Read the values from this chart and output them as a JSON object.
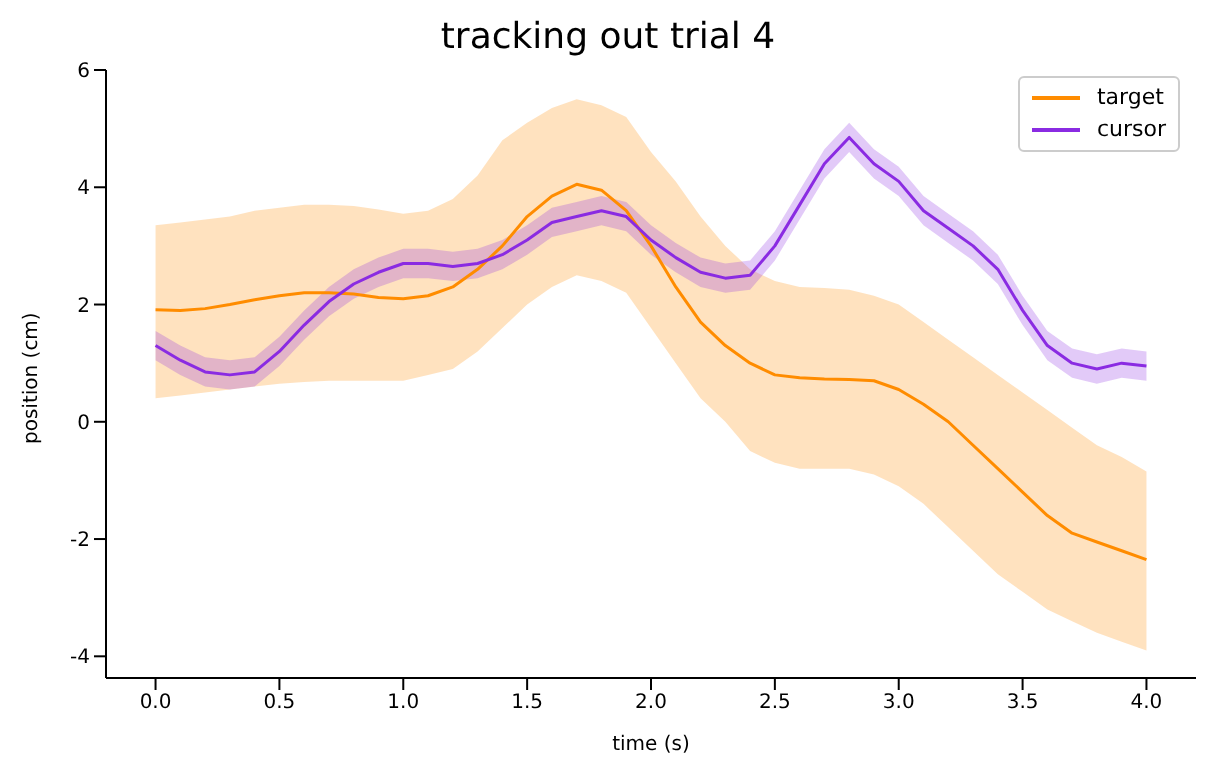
{
  "chart_data": {
    "type": "line",
    "title": "tracking out trial 4",
    "xlabel": "time (s)",
    "ylabel": "position (cm)",
    "x": [
      0,
      0.1,
      0.2,
      0.3,
      0.4,
      0.5,
      0.6,
      0.7,
      0.8,
      0.9,
      1.0,
      1.1,
      1.2,
      1.3,
      1.4,
      1.5,
      1.6,
      1.7,
      1.8,
      1.9,
      2.0,
      2.1,
      2.2,
      2.3,
      2.4,
      2.5,
      2.6,
      2.7,
      2.8,
      2.9,
      3.0,
      3.1,
      3.2,
      3.3,
      3.4,
      3.5,
      3.6,
      3.7,
      3.8,
      3.9,
      4.0
    ],
    "series": [
      {
        "name": "target",
        "color": "#ff8c00",
        "values": [
          1.91,
          1.9,
          1.93,
          2.0,
          2.08,
          2.15,
          2.2,
          2.2,
          2.18,
          2.12,
          2.1,
          2.15,
          2.3,
          2.6,
          3.0,
          3.5,
          3.85,
          4.05,
          3.95,
          3.6,
          3.0,
          2.3,
          1.7,
          1.3,
          1.0,
          0.8,
          0.75,
          0.73,
          0.72,
          0.7,
          0.55,
          0.3,
          0.0,
          -0.4,
          -0.8,
          -1.2,
          -1.6,
          -1.9,
          -2.05,
          -2.2,
          -2.35
        ],
        "lower": [
          0.4,
          0.45,
          0.5,
          0.55,
          0.6,
          0.65,
          0.68,
          0.7,
          0.7,
          0.7,
          0.7,
          0.8,
          0.9,
          1.2,
          1.6,
          2.0,
          2.3,
          2.5,
          2.4,
          2.2,
          1.6,
          1.0,
          0.4,
          0.0,
          -0.5,
          -0.7,
          -0.8,
          -0.8,
          -0.8,
          -0.9,
          -1.1,
          -1.4,
          -1.8,
          -2.2,
          -2.6,
          -2.9,
          -3.2,
          -3.4,
          -3.6,
          -3.75,
          -3.9
        ],
        "upper": [
          3.35,
          3.4,
          3.45,
          3.5,
          3.6,
          3.65,
          3.7,
          3.7,
          3.68,
          3.62,
          3.55,
          3.6,
          3.8,
          4.2,
          4.8,
          5.1,
          5.35,
          5.5,
          5.4,
          5.2,
          4.6,
          4.1,
          3.5,
          3.0,
          2.6,
          2.4,
          2.3,
          2.28,
          2.25,
          2.15,
          2.0,
          1.7,
          1.4,
          1.1,
          0.8,
          0.5,
          0.2,
          -0.1,
          -0.4,
          -0.6,
          -0.85
        ]
      },
      {
        "name": "cursor",
        "color": "#8a2be2",
        "values": [
          1.3,
          1.05,
          0.85,
          0.8,
          0.85,
          1.2,
          1.65,
          2.05,
          2.35,
          2.55,
          2.7,
          2.7,
          2.65,
          2.7,
          2.85,
          3.1,
          3.4,
          3.5,
          3.6,
          3.5,
          3.1,
          2.8,
          2.55,
          2.45,
          2.5,
          3.0,
          3.7,
          4.4,
          4.85,
          4.4,
          4.1,
          3.6,
          3.3,
          3.0,
          2.6,
          1.9,
          1.3,
          1.0,
          0.9,
          1.0,
          0.95
        ],
        "lower": [
          1.05,
          0.8,
          0.6,
          0.55,
          0.6,
          0.95,
          1.4,
          1.8,
          2.1,
          2.3,
          2.45,
          2.45,
          2.4,
          2.45,
          2.6,
          2.85,
          3.15,
          3.25,
          3.35,
          3.25,
          2.85,
          2.55,
          2.3,
          2.2,
          2.25,
          2.75,
          3.45,
          4.15,
          4.6,
          4.15,
          3.85,
          3.35,
          3.05,
          2.75,
          2.35,
          1.65,
          1.05,
          0.75,
          0.65,
          0.75,
          0.7
        ],
        "upper": [
          1.55,
          1.3,
          1.1,
          1.05,
          1.1,
          1.45,
          1.9,
          2.3,
          2.6,
          2.8,
          2.95,
          2.95,
          2.9,
          2.95,
          3.1,
          3.35,
          3.65,
          3.75,
          3.85,
          3.75,
          3.35,
          3.05,
          2.8,
          2.7,
          2.75,
          3.25,
          3.95,
          4.65,
          5.1,
          4.65,
          4.35,
          3.85,
          3.55,
          3.25,
          2.85,
          2.15,
          1.55,
          1.25,
          1.15,
          1.25,
          1.2
        ]
      }
    ],
    "xlim": [
      -0.2,
      4.2
    ],
    "xticks": [
      {
        "value": 0,
        "label": "0.0"
      },
      {
        "value": 0.5,
        "label": "0.5"
      },
      {
        "value": 1,
        "label": "1.0"
      },
      {
        "value": 1.5,
        "label": "1.5"
      },
      {
        "value": 2,
        "label": "2.0"
      },
      {
        "value": 2.5,
        "label": "2.5"
      },
      {
        "value": 3,
        "label": "3.0"
      },
      {
        "value": 3.5,
        "label": "3.5"
      },
      {
        "value": 4,
        "label": "4.0"
      }
    ],
    "ylim": [
      -4.37,
      6.0
    ],
    "yticks": [
      -4,
      -2,
      0,
      2,
      4,
      6
    ],
    "legend": "top right",
    "grid": false,
    "marker": "none",
    "line_style": "solid"
  }
}
